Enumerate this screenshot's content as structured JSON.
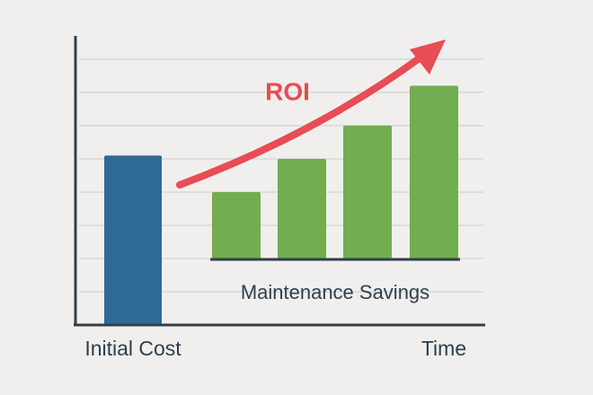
{
  "chart_data": {
    "type": "bar",
    "annotation": "ROI",
    "xlabel": "Time",
    "ylim": [
      0,
      8.7
    ],
    "yticks": [
      1,
      2,
      3,
      4,
      5,
      6,
      7,
      8
    ],
    "grid": true,
    "series": [
      {
        "name": "Initial Cost",
        "color": "#2e6a94",
        "values": [
          5.1
        ]
      },
      {
        "name": "Maintenance Savings",
        "color": "#72ad4f",
        "values": [
          4,
          5,
          6,
          7.2
        ]
      }
    ]
  }
}
